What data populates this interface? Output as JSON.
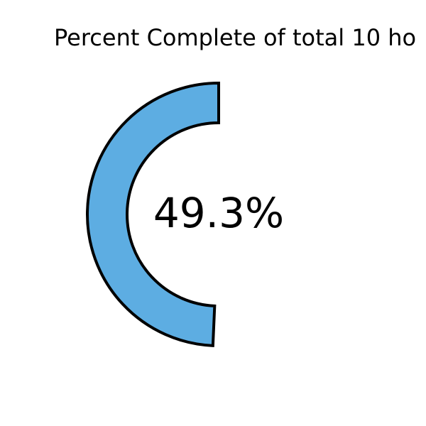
{
  "chart_data": {
    "type": "donut",
    "title": "Percent Complete of total 10 ho",
    "value_label": "49.3%",
    "percent_complete": 49.3,
    "series": [
      {
        "values": [
          49.3
        ],
        "color": "#5DADE2"
      }
    ]
  },
  "colors": {
    "arc_fill": "#5DADE2",
    "arc_stroke": "#000000",
    "background": "#ffffff"
  }
}
